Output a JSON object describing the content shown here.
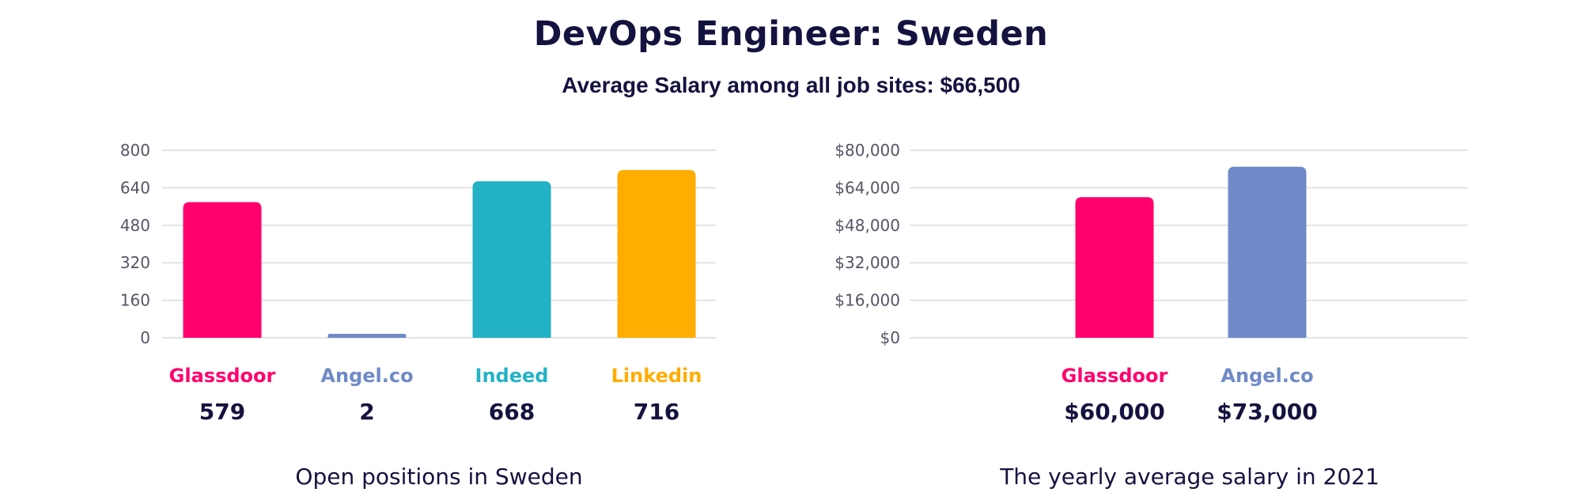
{
  "header": {
    "title": "DevOps Engineer: Sweden",
    "subtitle": "Average Salary among all job sites: $66,500"
  },
  "chart_data": [
    {
      "type": "bar",
      "categories": [
        "Glassdoor",
        "Angel.co",
        "Indeed",
        "Linkedin"
      ],
      "values": [
        579,
        2,
        668,
        716
      ],
      "value_labels": [
        "579",
        "2",
        "668",
        "716"
      ],
      "colors": [
        "#ff006e",
        "#6f8ac8",
        "#23b2c5",
        "#ffad00"
      ],
      "ylim": [
        0,
        800
      ],
      "yticks": [
        0,
        160,
        320,
        480,
        640,
        800
      ],
      "ytick_labels": [
        "0",
        "160",
        "320",
        "480",
        "640",
        "800"
      ],
      "caption": "Open positions in Sweden",
      "grid": true
    },
    {
      "type": "bar",
      "categories": [
        "Glassdoor",
        "Angel.co"
      ],
      "values": [
        60000,
        73000
      ],
      "value_labels": [
        "$60,000",
        "$73,000"
      ],
      "colors": [
        "#ff006e",
        "#6f8ac8"
      ],
      "ylim": [
        0,
        80000
      ],
      "yticks": [
        0,
        16000,
        32000,
        48000,
        64000,
        80000
      ],
      "ytick_labels": [
        "$0",
        "$16,000",
        "$32,000",
        "$48,000",
        "$64,000",
        "$80,000"
      ],
      "caption": "The yearly average salary in 2021",
      "grid": true
    }
  ]
}
